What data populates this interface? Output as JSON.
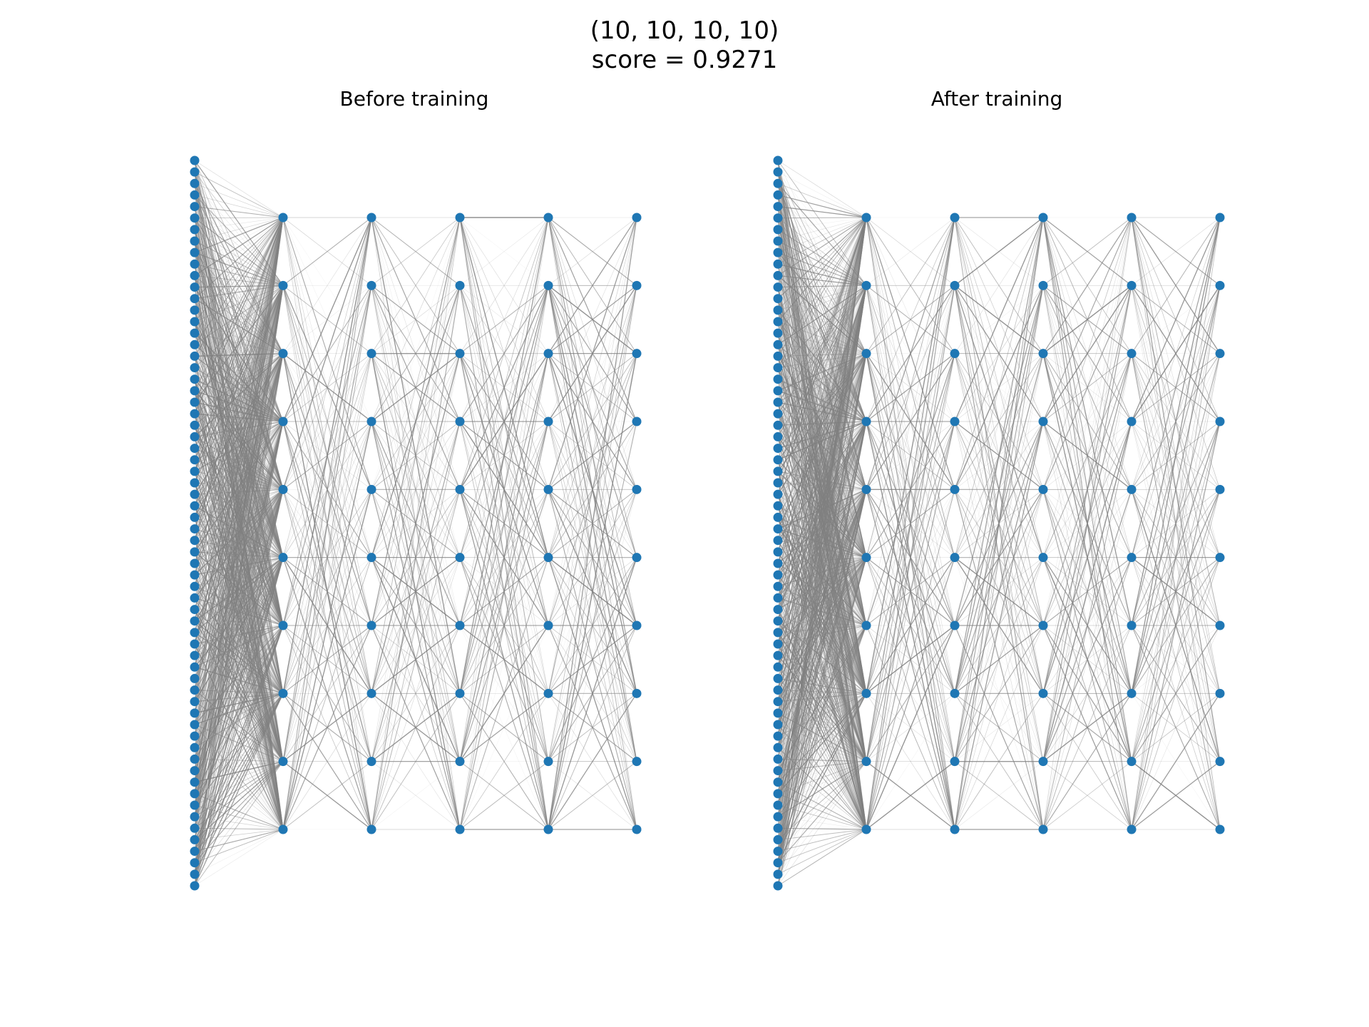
{
  "figure": {
    "title_line1": "(10, 10, 10, 10)",
    "title_line2": "score = 0.9271"
  },
  "panels": [
    {
      "title": "Before training"
    },
    {
      "title": "After training"
    }
  ],
  "network": {
    "layer_sizes": [
      64,
      10,
      10,
      10,
      10,
      10
    ],
    "node_color": "#1f77b4",
    "edge_color": "#808080"
  }
}
